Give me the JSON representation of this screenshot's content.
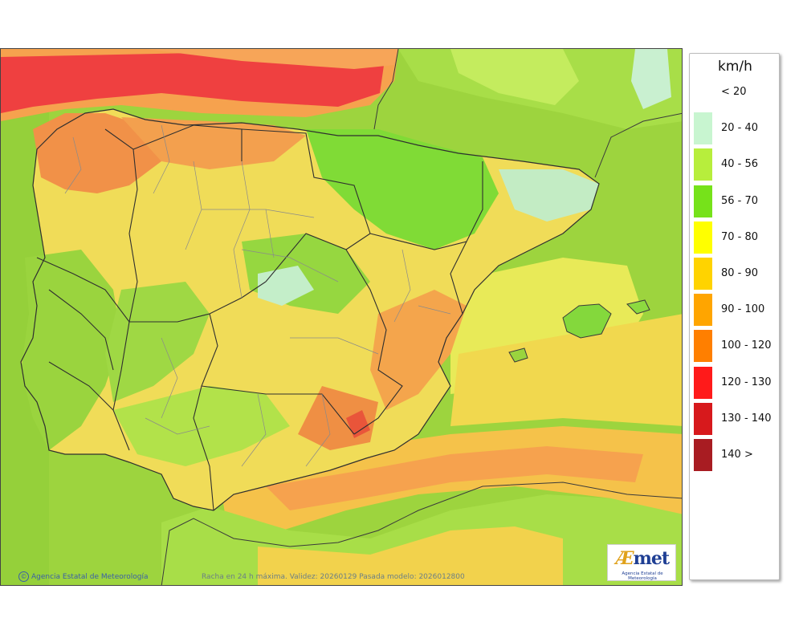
{
  "map": {
    "credit": "Agencia Estatal de Meteorología",
    "validity_text": "Racha en 24 h máxima. Validez: 20260129 Pasada modelo: 2026012800",
    "logo": {
      "word_ae": "Æ",
      "word_rest": "met",
      "subtitle": "Agencia Estatal de Meteorología"
    }
  },
  "legend": {
    "title": "km/h",
    "classes": [
      {
        "label": "< 20",
        "color": "#ffffff"
      },
      {
        "label": "20 - 40",
        "color": "#c8f5d0"
      },
      {
        "label": "40 - 56",
        "color": "#b7ee3c"
      },
      {
        "label": "56 - 70",
        "color": "#76e21a"
      },
      {
        "label": "70 - 80",
        "color": "#ffff00"
      },
      {
        "label": "80 - 90",
        "color": "#ffd300"
      },
      {
        "label": "90 - 100",
        "color": "#ffa500"
      },
      {
        "label": "100 - 120",
        "color": "#ff7f00"
      },
      {
        "label": "120 - 130",
        "color": "#ff1a1a"
      },
      {
        "label": "130 - 140",
        "color": "#d7191c"
      },
      {
        "label": "140 >",
        "color": "#a81c22"
      }
    ]
  },
  "colors": {
    "sea_green": "#9ad23c",
    "land_yellow": "#f5e45a",
    "orange_band": "#f6a64e",
    "red_band": "#ef3d3d",
    "light_cyan": "#c9f0d0",
    "border_dark": "#3a3a3a",
    "border_province": "#8a8a8a"
  }
}
